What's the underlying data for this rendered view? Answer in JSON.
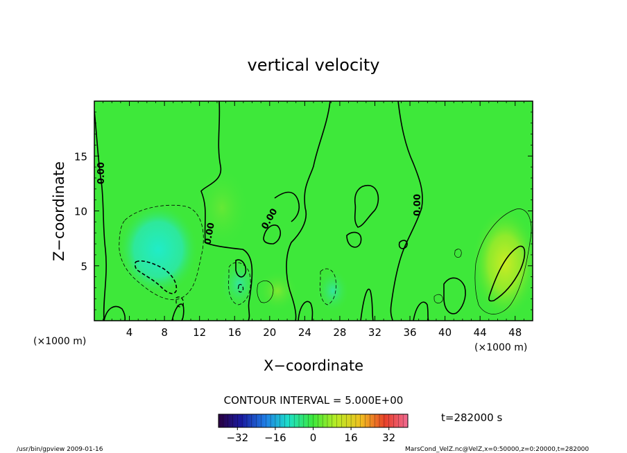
{
  "chart_data": {
    "type": "heatmap",
    "title": "vertical velocity",
    "xlabel": "X−coordinate",
    "ylabel": "Z−coordinate",
    "x_unit_left": "(×1000 m)",
    "x_unit_right": "(×1000 m)",
    "xlim": [
      0,
      50
    ],
    "ylim": [
      0,
      20
    ],
    "xticks": [
      4,
      8,
      12,
      16,
      20,
      24,
      28,
      32,
      36,
      40,
      44,
      48
    ],
    "yticks": [
      5,
      10,
      15
    ],
    "contour_interval_text": "CONTOUR INTERVAL = 5.000E+00",
    "contour_labels": [
      "0.00",
      "0.00",
      "0.00",
      "0.00"
    ],
    "colorbar": {
      "min": -40,
      "max": 40,
      "ticks": [
        -32,
        -16,
        0,
        16,
        32
      ],
      "tick_labels": [
        "−32",
        "−16",
        "0",
        "16",
        "32"
      ]
    },
    "time_label": "t=282000 s",
    "footer_left": "/usr/bin/gpview  2009-01-16",
    "footer_right": "MarsCond_VelZ.nc@VelZ,x=0:50000,z=0:20000,t=282000",
    "features": [
      {
        "kind": "min",
        "x": 7,
        "z": 7,
        "value": -12
      },
      {
        "kind": "min",
        "x": 8,
        "z": 4,
        "value": -14
      },
      {
        "kind": "min",
        "x": 16.5,
        "z": 3.5,
        "value": -7
      },
      {
        "kind": "min",
        "x": 27,
        "z": 2.5,
        "value": -6
      },
      {
        "kind": "max",
        "x": 47,
        "z": 4.8,
        "value": 11
      },
      {
        "kind": "max",
        "x": 46,
        "z": 7,
        "value": 7
      }
    ]
  },
  "colors": {
    "background_field": "#3ee83a",
    "frame": "#000000"
  }
}
